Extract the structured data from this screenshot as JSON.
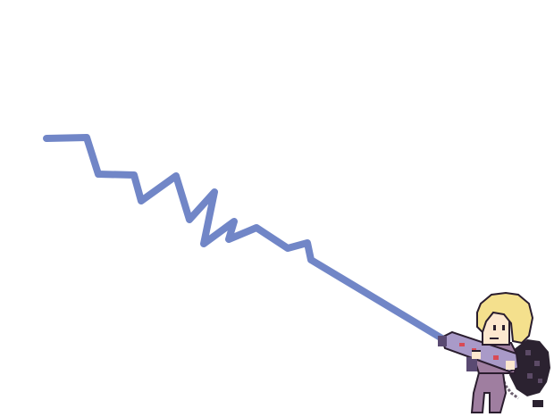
{
  "scene": {
    "background_color": "#ffffff",
    "beam": {
      "icon": "energy-beam",
      "color": "#7186c7"
    },
    "character": {
      "icon": "blonde-ghost-hunter",
      "hair_color": "#f4e08d",
      "skin_color": "#fde7cf",
      "suit_color": "#9f7ea0",
      "gun_color": "#a99ac8",
      "backpack_color": "#2b2230",
      "light_color": "#d94a55"
    }
  }
}
